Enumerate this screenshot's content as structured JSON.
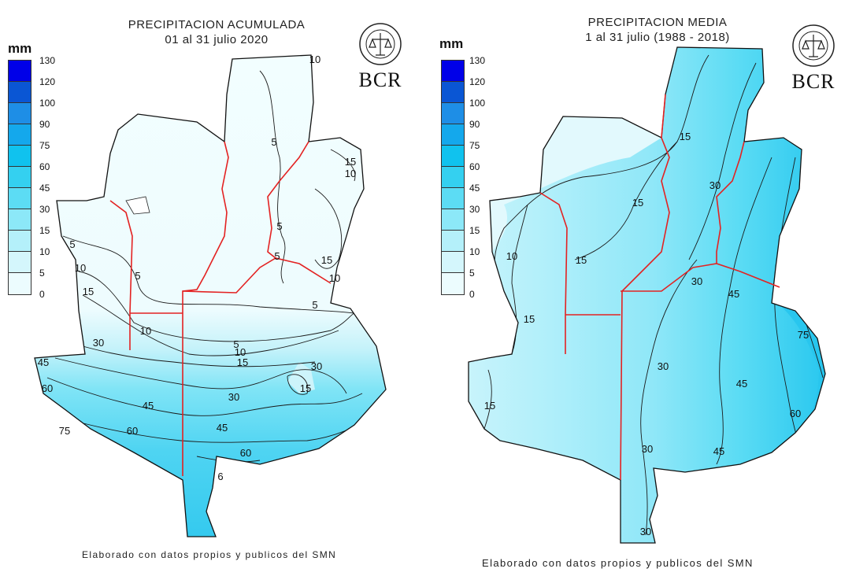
{
  "legend": {
    "unit": "mm",
    "ticks": [
      "130",
      "120",
      "100",
      "90",
      "75",
      "60",
      "45",
      "30",
      "15",
      "10",
      "5",
      "0"
    ],
    "colors": [
      "#0000e8",
      "#0a56d4",
      "#1e8ee6",
      "#14a8ec",
      "#10c2ee",
      "#34d0f0",
      "#5cdcf4",
      "#8ce8f8",
      "#b4f0fa",
      "#d4f6fc",
      "#ecfcfe",
      "#ffffff"
    ]
  },
  "logo": {
    "brand": "BCR"
  },
  "maps": [
    {
      "title_line1": "PRECIPITACION ACUMULADA",
      "title_line2": "01 al 31 julio 2020",
      "credit": "Elaborado con datos propios y publicos del SMN",
      "contour_labels": [
        "10",
        "5",
        "15",
        "10",
        "5",
        "5",
        "15",
        "10",
        "5",
        "10",
        "5",
        "15",
        "10",
        "5",
        "30",
        "5",
        "10",
        "15",
        "45",
        "30",
        "15",
        "60",
        "45",
        "30",
        "75",
        "60",
        "45",
        "60",
        "6"
      ]
    },
    {
      "title_line1": "PRECIPITACION MEDIA",
      "title_line2": "1 al 31 julio (1988 - 2018)",
      "credit": "Elaborado con datos propios y publicos del SMN",
      "contour_labels": [
        "15",
        "30",
        "15",
        "10",
        "15",
        "30",
        "45",
        "15",
        "75",
        "30",
        "45",
        "60",
        "15",
        "45",
        "30",
        "30"
      ]
    }
  ]
}
